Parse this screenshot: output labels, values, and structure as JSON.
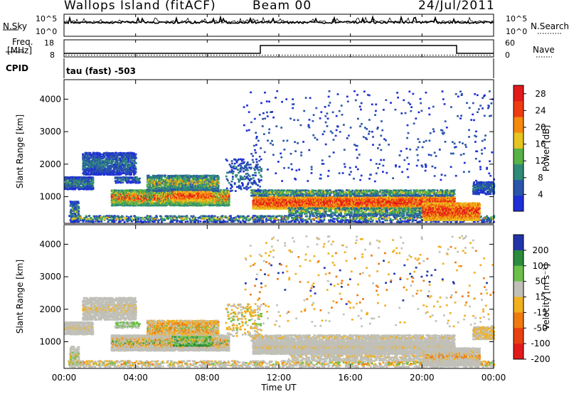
{
  "header": {
    "station": "Wallops Island (fitACF)",
    "beam": "Beam 00",
    "date": "24/Jul/2011"
  },
  "noise_panel": {
    "left_label": "N.Sky",
    "right_label": "N.Search",
    "left_ticks": [
      "10^5",
      "10^0"
    ],
    "right_ticks": [
      "10^5",
      "10^0"
    ]
  },
  "freq_panel": {
    "left_label_line1": "Freq.",
    "left_label_line2": "[MHz]",
    "right_label": "Nave",
    "left_ticks": [
      "18",
      "8"
    ],
    "right_ticks": [
      "60",
      "0"
    ]
  },
  "cpid_panel": {
    "left_label": "CPID",
    "program": "tau (fast) -503"
  },
  "chart_data": [
    {
      "type": "heatmap",
      "name": "power",
      "xlabel": "Time UT",
      "ylabel": "Slant Range [km]",
      "x_ticks": [
        "00:00",
        "04:00",
        "08:00",
        "12:00",
        "16:00",
        "20:00",
        "00:00"
      ],
      "xlim_hours": [
        0,
        24
      ],
      "y_ticks": [
        1000,
        2000,
        3000,
        4000
      ],
      "ylim": [
        180,
        4600
      ],
      "colorbar_label": "Power [dB]",
      "colorbar_ticks": [
        4,
        8,
        12,
        16,
        20,
        24,
        28
      ],
      "colorbar_range": [
        0,
        30
      ],
      "colors": [
        "#1f2fd6",
        "#2a55a8",
        "#2f8a78",
        "#58b246",
        "#e6c421",
        "#f58a0f",
        "#ef3b10",
        "#e31a1c"
      ]
    },
    {
      "type": "heatmap",
      "name": "velocity",
      "xlabel": "Time UT",
      "ylabel": "Slant Range [km]",
      "x_ticks": [
        "00:00",
        "04:00",
        "08:00",
        "12:00",
        "16:00",
        "20:00",
        "00:00"
      ],
      "xlim_hours": [
        0,
        24
      ],
      "y_ticks": [
        1000,
        2000,
        3000,
        4000
      ],
      "ylim": [
        180,
        4600
      ],
      "colorbar_label": "Velocity [m s⁻¹]",
      "colorbar_ticks": [
        200,
        100,
        50,
        15,
        -15,
        -50,
        -100,
        -200
      ],
      "colorbar_range": [
        -250,
        250
      ],
      "colors": [
        "#2233aa",
        "#2a8c3c",
        "#6cc04a",
        "#c0c0b8",
        "#f0b020",
        "#f07a10",
        "#e84010",
        "#e31a1c"
      ]
    }
  ]
}
